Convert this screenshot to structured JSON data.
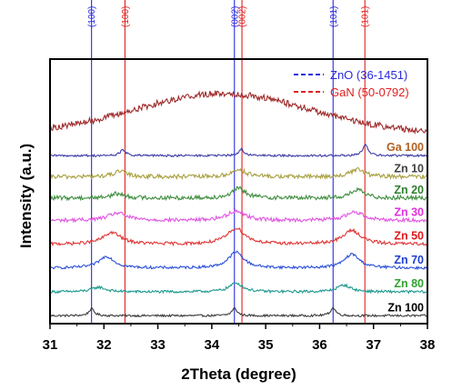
{
  "chart_data": {
    "type": "line",
    "xlabel": "2Theta (degree)",
    "ylabel": "Intensity (a.u.)",
    "xlim": [
      31,
      38
    ],
    "xticks": [
      "31",
      "32",
      "33",
      "34",
      "35",
      "36",
      "37",
      "38"
    ],
    "reference_lines": [
      {
        "x": 31.77,
        "label": "(100)",
        "set": "ZnO (36-1451)",
        "color": "#2a2ae0"
      },
      {
        "x": 34.42,
        "label": "(002)",
        "set": "ZnO (36-1451)",
        "color": "#2a2ae0"
      },
      {
        "x": 36.25,
        "label": "(101)",
        "set": "ZnO (36-1451)",
        "color": "#2a2ae0"
      },
      {
        "x": 32.39,
        "label": "(100)",
        "set": "GaN (50-0792)",
        "color": "#e02020"
      },
      {
        "x": 34.56,
        "label": "(002)",
        "set": "GaN (50-0792)",
        "color": "#e02020"
      },
      {
        "x": 36.84,
        "label": "(101)",
        "set": "GaN (50-0792)",
        "color": "#e02020"
      }
    ],
    "legend": [
      {
        "label": "ZnO (36-1451)",
        "color": "#2a2ae0"
      },
      {
        "label": "GaN (50-0792)",
        "color": "#e02020"
      }
    ],
    "series": [
      {
        "name": "Zn 100",
        "color": "#3c3c3c",
        "baseline": 0.03,
        "amp": 0.08,
        "width": 0.06,
        "noise": 0.004,
        "peaks": [
          [
            31.77,
            0.32
          ],
          [
            34.42,
            0.35
          ],
          [
            36.25,
            0.37
          ]
        ]
      },
      {
        "name": "Zn 80",
        "color": "#1e9a8e",
        "baseline": 0.12,
        "amp": 0.08,
        "width": 0.15,
        "noise": 0.005,
        "peaks": [
          [
            31.9,
            0.22
          ],
          [
            34.45,
            0.42
          ],
          [
            36.45,
            0.32
          ]
        ]
      },
      {
        "name": "Zn 70",
        "color": "#2b4fd8",
        "baseline": 0.21,
        "amp": 0.08,
        "width": 0.17,
        "noise": 0.005,
        "peaks": [
          [
            32.05,
            0.55
          ],
          [
            34.45,
            0.75
          ],
          [
            36.6,
            0.65
          ]
        ]
      },
      {
        "name": "Zn 50",
        "color": "#e03535",
        "baseline": 0.3,
        "amp": 0.08,
        "width": 0.2,
        "noise": 0.006,
        "peaks": [
          [
            32.15,
            0.55
          ],
          [
            34.45,
            0.75
          ],
          [
            36.6,
            0.65
          ]
        ]
      },
      {
        "name": "Zn 30",
        "color": "#e055e0",
        "baseline": 0.39,
        "amp": 0.08,
        "width": 0.2,
        "noise": 0.007,
        "peaks": [
          [
            32.25,
            0.35
          ],
          [
            34.45,
            0.45
          ],
          [
            36.65,
            0.4
          ]
        ]
      },
      {
        "name": "Zn 20",
        "color": "#3f8f3f",
        "baseline": 0.475,
        "amp": 0.08,
        "width": 0.15,
        "noise": 0.008,
        "peaks": [
          [
            32.25,
            0.2
          ],
          [
            34.5,
            0.45
          ],
          [
            36.7,
            0.38
          ]
        ]
      },
      {
        "name": "Zn 10",
        "color": "#a8a040",
        "baseline": 0.555,
        "amp": 0.08,
        "width": 0.15,
        "noise": 0.008,
        "peaks": [
          [
            32.3,
            0.25
          ],
          [
            34.5,
            0.35
          ],
          [
            36.7,
            0.35
          ]
        ]
      },
      {
        "name": "Ga 100",
        "color": "#3b3ba8",
        "baseline": 0.635,
        "amp": 0.08,
        "width": 0.06,
        "noise": 0.004,
        "peaks": [
          [
            32.35,
            0.28
          ],
          [
            34.55,
            0.3
          ],
          [
            36.85,
            0.5
          ]
        ]
      },
      {
        "name": "",
        "color": "#9e2a2a",
        "baseline": 0.72,
        "amp": 0.08,
        "width": 0.0,
        "noise": 0.012,
        "peaks": [],
        "hump": {
          "center": 34.2,
          "height": 0.15,
          "sigma": 1.6
        }
      }
    ],
    "label_colors": {
      "Ga 100": "#b06020",
      "Zn 10": "#404040",
      "Zn 20": "#2f7f2f",
      "Zn 30": "#e030e0",
      "Zn 50": "#e01818",
      "Zn 70": "#2040d0",
      "Zn 80": "#30a030",
      "Zn 100": "#000000"
    },
    "grid": false,
    "legend_position": "top-right"
  }
}
